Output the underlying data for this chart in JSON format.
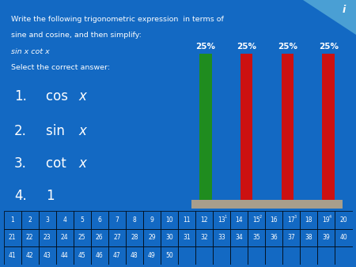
{
  "bg_color": "#1369c3",
  "title_lines": [
    "Write the following trigonometric expression  in terms of",
    "sine and cosine, and then simplify:",
    "sin x cot x",
    "Select the correct answer:"
  ],
  "title_italic_line": 2,
  "answers": [
    "cos x",
    "sin x",
    "cot x",
    "1"
  ],
  "answer_italic": [
    true,
    true,
    true,
    false
  ],
  "bar_values": [
    25,
    25,
    25,
    25
  ],
  "bar_colors": [
    "#1f8c1f",
    "#cc1111",
    "#cc1111",
    "#cc1111"
  ],
  "bar_labels": [
    "25%",
    "25%",
    "25%",
    "25%"
  ],
  "table_nums": [
    [
      1,
      2,
      3,
      4,
      5,
      6,
      7,
      8,
      9,
      10,
      11,
      12,
      13,
      14,
      15,
      16,
      17,
      18,
      19,
      20
    ],
    [
      21,
      22,
      23,
      24,
      25,
      26,
      27,
      28,
      29,
      30,
      31,
      32,
      33,
      34,
      35,
      36,
      37,
      38,
      39,
      40
    ],
    [
      41,
      42,
      43,
      44,
      45,
      46,
      47,
      48,
      49,
      50
    ]
  ],
  "highlight_cols_0based": [
    12,
    14,
    16,
    18
  ],
  "highlight_superscripts": [
    "1",
    "2",
    "3",
    "4"
  ],
  "platform_color": "#a89e8c",
  "icon_triangle_color": "#4a9fd4",
  "table_cell_bg": "#1369c3",
  "table_border_color": "#000000"
}
